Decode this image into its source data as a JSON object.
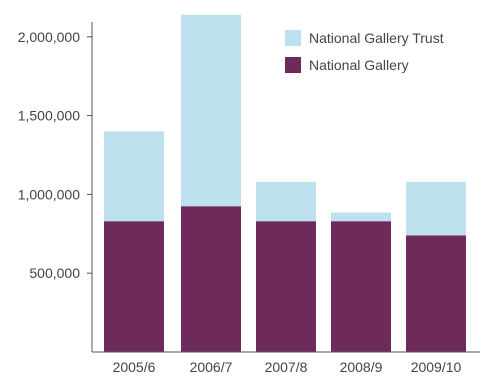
{
  "chart_data": {
    "type": "bar",
    "stacked": true,
    "title": "",
    "xlabel": "",
    "ylabel": "",
    "categories": [
      "2005/6",
      "2006/7",
      "2007/8",
      "2008/9",
      "2009/10"
    ],
    "series": [
      {
        "name": "National Gallery",
        "values": [
          830000,
          925000,
          830000,
          830000,
          740000
        ],
        "color": "#6e2a5a"
      },
      {
        "name": "National Gallery Trust",
        "values": [
          570000,
          1215000,
          250000,
          55000,
          340000
        ],
        "color": "#bde1ee"
      }
    ],
    "ylim": [
      0,
      2170000
    ],
    "yticks": [
      500000,
      1000000,
      1500000,
      2000000
    ],
    "ytick_labels": [
      "500,000",
      "1,000,000",
      "1,500,000",
      "2,000,000"
    ],
    "legend": {
      "position": "top-right",
      "entries": [
        {
          "label": "National Gallery Trust",
          "color": "#bde1ee"
        },
        {
          "label": "National Gallery",
          "color": "#6e2a5a"
        }
      ]
    },
    "grid": false
  }
}
